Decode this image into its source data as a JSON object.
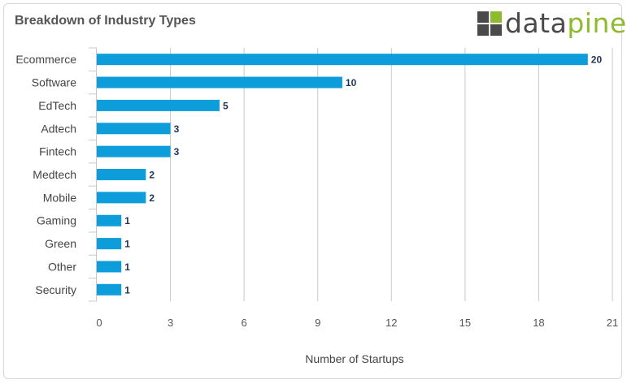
{
  "header": {
    "title": "Breakdown of Industry Types",
    "logo_part1": "data",
    "logo_part2": "pine"
  },
  "colors": {
    "bar": "#0d9ddb",
    "grid": "#c8c8c8",
    "logo_dark": "#4a4a4a",
    "logo_green": "#8dbb2c"
  },
  "chart_data": {
    "type": "bar",
    "orientation": "horizontal",
    "categories": [
      "Ecommerce",
      "Software",
      "EdTech",
      "Adtech",
      "Fintech",
      "Medtech",
      "Mobile",
      "Gaming",
      "Green",
      "Other",
      "Security"
    ],
    "values": [
      20,
      10,
      5,
      3,
      3,
      2,
      2,
      1,
      1,
      1,
      1
    ],
    "xlabel": "Number of Startups",
    "ylabel": "",
    "xlim": [
      0,
      21
    ],
    "xticks": [
      0,
      3,
      6,
      9,
      12,
      15,
      18,
      21
    ],
    "grid": "vertical",
    "legend": "none"
  }
}
